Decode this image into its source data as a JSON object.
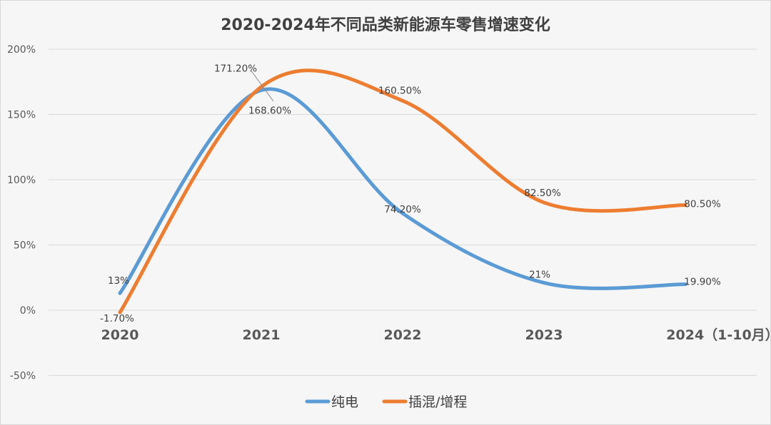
{
  "chart_data": {
    "type": "line",
    "title": "2020-2024年不同品类新能源车零售增速变化",
    "categories": [
      "2020",
      "2021",
      "2022",
      "2023",
      "2024（1-10月）"
    ],
    "ylim": [
      -50,
      200
    ],
    "yticks": [
      -50,
      0,
      50,
      100,
      150,
      200
    ],
    "ytick_labels": [
      "-50%",
      "0%",
      "50%",
      "100%",
      "150%",
      "200%"
    ],
    "grid": true,
    "legend_position": "bottom",
    "smooth": true,
    "series": [
      {
        "name": "纯电",
        "color": "#5B9BD5",
        "values": [
          13,
          168.6,
          74.2,
          21,
          19.9
        ],
        "labels": [
          "13%",
          "168.60%",
          "74.20%",
          "21%",
          "19.90%"
        ]
      },
      {
        "name": "插混/增程",
        "color": "#ED7D31",
        "values": [
          -1.7,
          171.2,
          160.5,
          82.5,
          80.5
        ],
        "labels": [
          "-1.70%",
          "171.20%",
          "160.50%",
          "82.50%",
          "80.50%"
        ]
      }
    ]
  }
}
